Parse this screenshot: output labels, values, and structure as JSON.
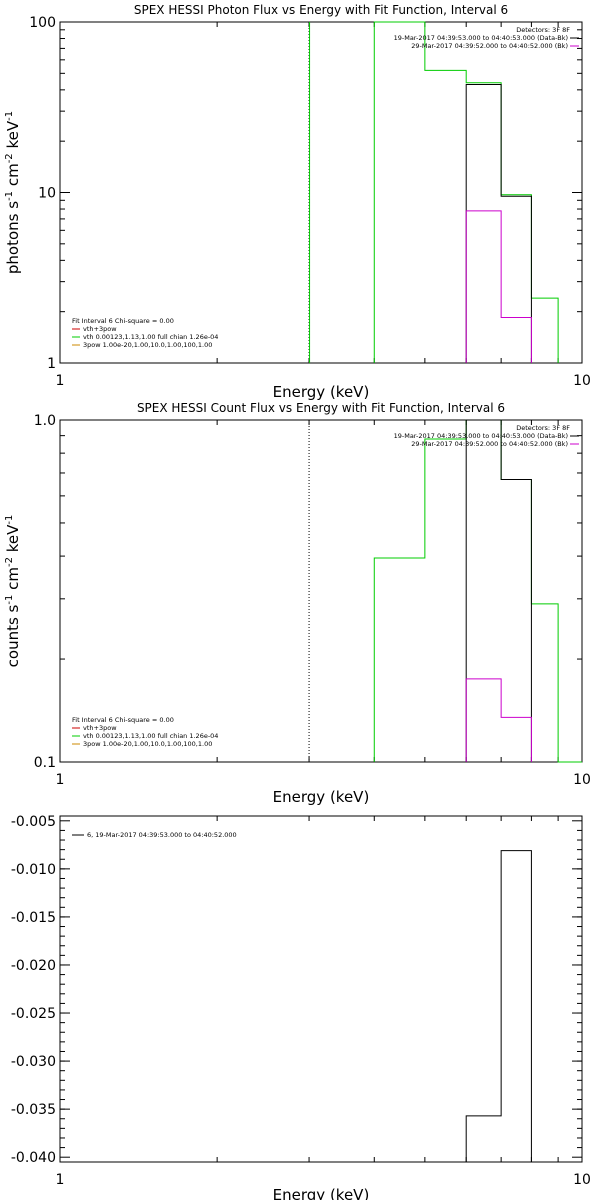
{
  "colors": {
    "black": "#000000",
    "green": "#00cc00",
    "magenta": "#cc00cc",
    "red": "#cc0000",
    "orange": "#cc8800"
  },
  "chart_data": [
    {
      "type": "line",
      "title": "SPEX HESSI Photon Flux vs Energy with Fit Function, Interval 6",
      "xlabel": "Energy (keV)",
      "ylabel_parts": [
        "photons s",
        "-1",
        " cm",
        "-2",
        " keV",
        "-1"
      ],
      "xscale": "log",
      "yscale": "log",
      "xlim": [
        1,
        10
      ],
      "ylim": [
        1,
        100
      ],
      "xticks": [
        "1",
        "10"
      ],
      "yticks": [
        "1",
        "10",
        "100"
      ],
      "ytick_values": [
        1,
        10,
        100
      ],
      "vline": 3,
      "vline_style": "dotted-green",
      "legend_right": {
        "title": "Detectors: 3F 8F",
        "lines": [
          {
            "text": "19-Mar-2017 04:39:53.000 to 04:40:53.000 (Data-Bk)",
            "color": "#000000"
          },
          {
            "text": "29-Mar-2017 04:39:52.000 to 04:40:52.000 (Bk)",
            "color": "#cc00cc"
          }
        ]
      },
      "legend_left": {
        "title": "Fit Interval 6   Chi-square = 0.00",
        "lines": [
          {
            "text": "vth+3pow",
            "color": "#cc0000"
          },
          {
            "text": "vth 0.00123,1.13,1.00  full chian 1.26e-04",
            "color": "#00cc00"
          },
          {
            "text": "3pow 1.00e-20,1.00,10.0,1.00,100,1.00",
            "color": "#cc8800"
          }
        ]
      },
      "series": [
        {
          "name": "vth 0.00123,1.13,1.00  full chian 1.26e-04",
          "color": "#00cc00",
          "edges": [
            4,
            5,
            6,
            7,
            8,
            9
          ],
          "values": [
            100,
            52,
            44,
            9.7,
            2.4
          ]
        },
        {
          "name": "Data-Bk",
          "color": "#000000",
          "edges": [
            6,
            7,
            8
          ],
          "values": [
            43,
            9.5
          ]
        },
        {
          "name": "Bk",
          "color": "#cc00cc",
          "edges": [
            6,
            7,
            8
          ],
          "values": [
            7.8,
            1.85
          ]
        }
      ]
    },
    {
      "type": "line",
      "title": "SPEX HESSI Count Flux vs Energy with Fit Function, Interval 6",
      "xlabel": "Energy (keV)",
      "ylabel_parts": [
        "counts s",
        "-1",
        " cm",
        "-2",
        " keV",
        "-1"
      ],
      "xscale": "log",
      "yscale": "log",
      "xlim": [
        1,
        10
      ],
      "ylim": [
        0.1,
        1.0
      ],
      "xticks": [
        "1",
        "10"
      ],
      "yticks": [
        "0.1",
        "1.0"
      ],
      "ytick_values": [
        0.1,
        1.0
      ],
      "vline": 3,
      "vline_style": "dotted-black",
      "legend_right": {
        "title": "Detectors: 3F 8F",
        "lines": [
          {
            "text": "19-Mar-2017 04:39:53.000 to 04:40:53.000 (Data-Bk)",
            "color": "#000000"
          },
          {
            "text": "29-Mar-2017 04:39:52.000 to 04:40:52.000 (Bk)",
            "color": "#cc00cc"
          }
        ]
      },
      "legend_left": {
        "title": "Fit Interval 6   Chi-square = 0.00",
        "lines": [
          {
            "text": "vth+3pow",
            "color": "#cc0000"
          },
          {
            "text": "vth 0.00123,1.13,1.00  full chian 1.26e-04",
            "color": "#00cc00"
          },
          {
            "text": "3pow 1.00e-20,1.00,10.0,1.00,100,1.00",
            "color": "#cc8800"
          }
        ]
      },
      "series": [
        {
          "name": "vth 0.00123,1.13,1.00  full chian 1.26e-04",
          "color": "#00cc00",
          "edges": [
            4,
            5,
            6,
            7,
            8,
            9,
            10
          ],
          "values": [
            0.395,
            0.88,
            1.0,
            0.67,
            0.29,
            0.1
          ]
        },
        {
          "name": "Data-Bk",
          "color": "#000000",
          "edges": [
            6,
            7,
            8
          ],
          "values": [
            1.0,
            0.67
          ]
        },
        {
          "name": "Bk",
          "color": "#cc00cc",
          "edges": [
            6,
            7,
            8
          ],
          "values": [
            0.175,
            0.135
          ]
        }
      ]
    },
    {
      "type": "line",
      "title": "",
      "xlabel": "Energy (keV)",
      "ylabel_parts": [],
      "xscale": "log",
      "yscale": "linear",
      "xlim": [
        1,
        10
      ],
      "ylim": [
        -0.0405,
        -0.0045
      ],
      "xticks": [
        "1",
        "10"
      ],
      "yticks": [
        "-0.005",
        "-0.010",
        "-0.015",
        "-0.020",
        "-0.025",
        "-0.030",
        "-0.035",
        "-0.040"
      ],
      "ytick_values": [
        -0.005,
        -0.01,
        -0.015,
        -0.02,
        -0.025,
        -0.03,
        -0.035,
        -0.04
      ],
      "legend_left_single": {
        "text": "6, 19-Mar-2017 04:39:53.000 to 04:40:52.000",
        "color": "#000000"
      },
      "series": [
        {
          "name": "6, 19-Mar-2017 04:39:53.000 to 04:40:52.000",
          "color": "#000000",
          "edges": [
            6,
            7,
            8
          ],
          "values": [
            -0.0357,
            -0.0081
          ]
        }
      ]
    }
  ]
}
